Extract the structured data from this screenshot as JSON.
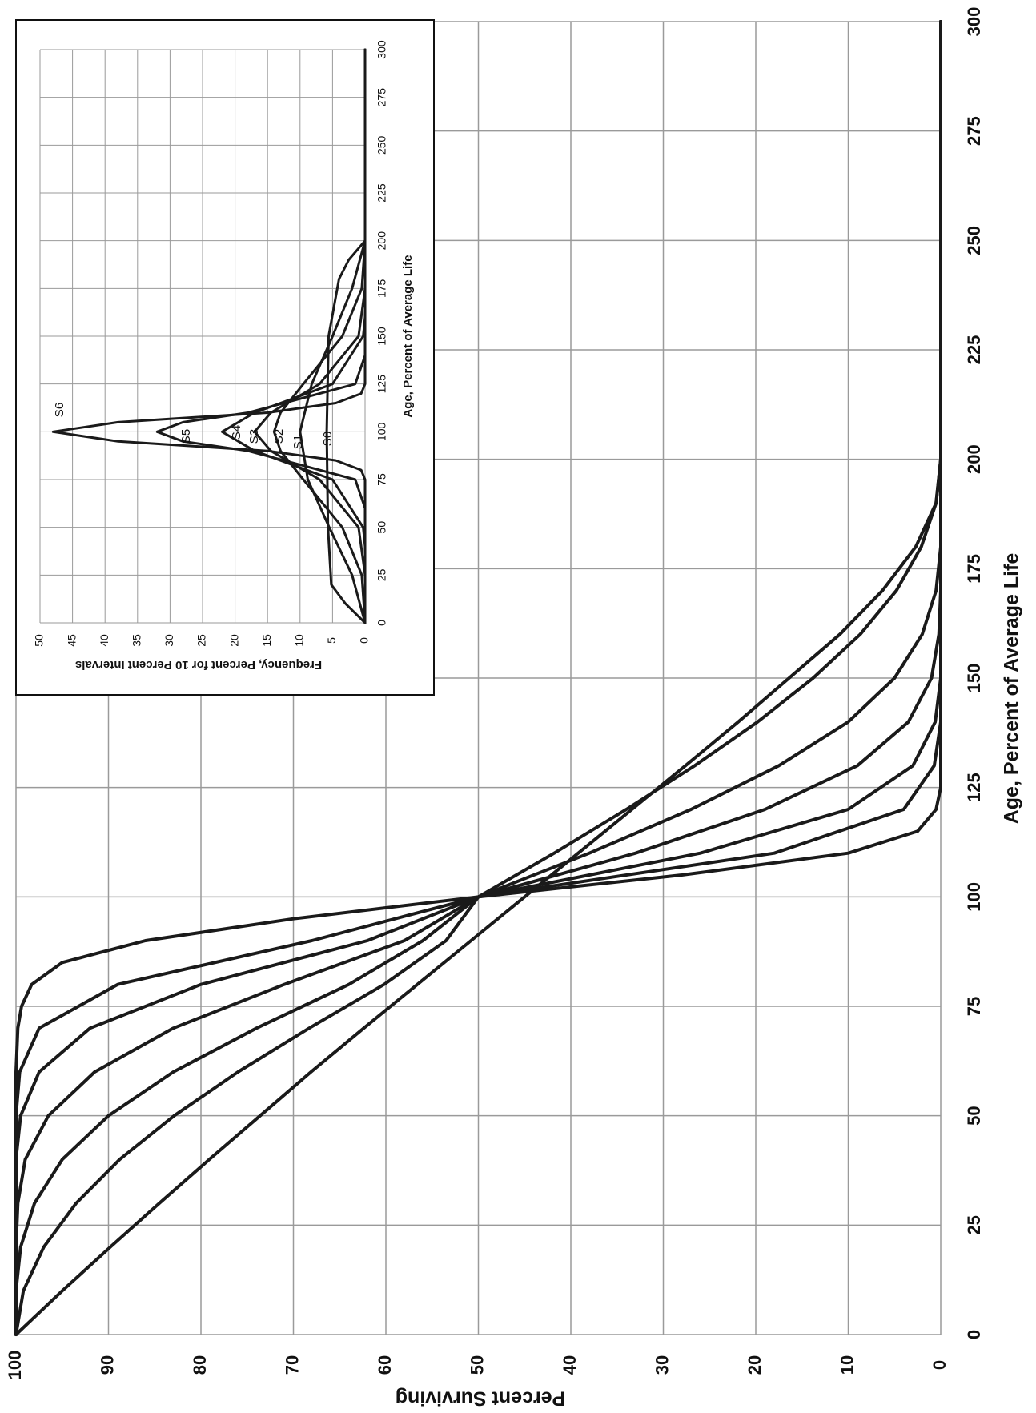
{
  "chart_data": [
    {
      "type": "line",
      "title": "",
      "xlabel": "Age, Percent of Average Life",
      "ylabel": "Percent Surviving",
      "xlim": [
        0,
        300
      ],
      "ylim": [
        0,
        100
      ],
      "x_ticks": [
        "0",
        "25",
        "50",
        "75",
        "100",
        "125",
        "150",
        "175",
        "200",
        "225",
        "250",
        "275",
        "300"
      ],
      "y_ticks": [
        "0",
        "10",
        "20",
        "30",
        "40",
        "50",
        "60",
        "70",
        "80",
        "90",
        "100"
      ],
      "grid": true,
      "orientation": "rotated 90° clockwise",
      "series": [
        {
          "name": "S0",
          "x": [
            0,
            10,
            20,
            30,
            40,
            50,
            60,
            70,
            80,
            90,
            100,
            110,
            120,
            130,
            140,
            150,
            160,
            170,
            180,
            190,
            200,
            300
          ],
          "y": [
            100,
            95,
            89.8,
            84.5,
            79.1,
            73.6,
            68.1,
            62.4,
            56.6,
            50.8,
            45,
            39.2,
            33.4,
            27.6,
            21.9,
            16.4,
            10.9,
            6.3,
            2.7,
            0.5,
            0,
            0
          ]
        },
        {
          "name": "S1",
          "x": [
            0,
            10,
            20,
            30,
            40,
            50,
            60,
            70,
            80,
            90,
            100,
            110,
            120,
            130,
            140,
            150,
            160,
            170,
            180,
            190,
            200,
            300
          ],
          "y": [
            100,
            99.2,
            97,
            93.5,
            88.8,
            82.9,
            76,
            68.3,
            60.2,
            53.5,
            50,
            41.8,
            34,
            26.6,
            19.8,
            13.8,
            8.7,
            4.8,
            2.1,
            0.5,
            0,
            0
          ]
        },
        {
          "name": "S2",
          "x": [
            0,
            10,
            20,
            30,
            40,
            50,
            60,
            70,
            80,
            90,
            100,
            110,
            120,
            130,
            140,
            150,
            160,
            170,
            180,
            200,
            300
          ],
          "y": [
            100,
            100,
            99.5,
            98,
            95,
            90,
            83,
            74,
            64,
            56,
            50,
            38,
            27,
            17.5,
            10,
            5,
            2,
            0.5,
            0,
            0,
            0
          ]
        },
        {
          "name": "S3",
          "x": [
            0,
            20,
            30,
            40,
            50,
            60,
            70,
            80,
            90,
            100,
            110,
            120,
            130,
            140,
            150,
            160,
            170,
            200,
            300
          ],
          "y": [
            100,
            100,
            99.8,
            99,
            96.5,
            91.5,
            83,
            71,
            58,
            50,
            33,
            19,
            9,
            3.5,
            1,
            0.2,
            0,
            0,
            0
          ]
        },
        {
          "name": "S4",
          "x": [
            0,
            40,
            50,
            60,
            70,
            80,
            90,
            100,
            110,
            120,
            130,
            140,
            150,
            200,
            300
          ],
          "y": [
            100,
            100,
            99.5,
            97.5,
            92,
            80,
            62,
            50,
            26,
            10,
            3,
            0.6,
            0,
            0,
            0
          ]
        },
        {
          "name": "S5",
          "x": [
            0,
            50,
            60,
            70,
            80,
            90,
            100,
            110,
            120,
            130,
            140,
            200,
            300
          ],
          "y": [
            100,
            100,
            99.6,
            97.5,
            89,
            68,
            50,
            18,
            4,
            0.7,
            0,
            0,
            0
          ]
        },
        {
          "name": "S6",
          "x": [
            0,
            60,
            70,
            75,
            80,
            85,
            90,
            95,
            100,
            105,
            110,
            115,
            120,
            125,
            200,
            300
          ],
          "y": [
            100,
            100,
            99.8,
            99.4,
            98.3,
            95,
            86,
            70,
            50,
            28,
            10,
            2.5,
            0.5,
            0,
            0,
            0
          ]
        }
      ],
      "annotations": [
        "S0",
        "S1",
        "S2",
        "S3",
        "S4",
        "S5",
        "S6"
      ]
    },
    {
      "type": "line",
      "title": "",
      "xlabel": "Age, Percent of Average Life",
      "ylabel": "Frequency, Percent for 10 Percent Intervals",
      "xlim": [
        0,
        300
      ],
      "ylim": [
        0,
        50
      ],
      "x_ticks": [
        "0",
        "25",
        "50",
        "75",
        "100",
        "125",
        "150",
        "175",
        "200",
        "225",
        "250",
        "275",
        "300"
      ],
      "y_ticks": [
        "0",
        "5",
        "10",
        "15",
        "20",
        "25",
        "30",
        "35",
        "40",
        "45",
        "50"
      ],
      "grid": true,
      "orientation": "inset, rotated 90° clockwise",
      "series": [
        {
          "name": "S0",
          "x": [
            0,
            10,
            20,
            50,
            100,
            150,
            180,
            190,
            200,
            300
          ],
          "y": [
            0,
            3,
            5.2,
            5.7,
            5.9,
            5.6,
            4,
            2.5,
            0,
            0
          ]
        },
        {
          "name": "S1",
          "x": [
            0,
            25,
            50,
            75,
            100,
            125,
            150,
            175,
            200,
            300
          ],
          "y": [
            0,
            2,
            5.5,
            8.8,
            10,
            8.2,
            5,
            2,
            0,
            0
          ]
        },
        {
          "name": "S2",
          "x": [
            0,
            25,
            50,
            75,
            90,
            100,
            110,
            125,
            150,
            175,
            200,
            300
          ],
          "y": [
            0,
            0.5,
            3.5,
            9.5,
            13,
            14,
            13,
            9.5,
            3.5,
            0.5,
            0,
            0
          ]
        },
        {
          "name": "S3",
          "x": [
            0,
            25,
            50,
            75,
            90,
            100,
            110,
            125,
            150,
            175,
            300
          ],
          "y": [
            0,
            0,
            1,
            7,
            14.5,
            17,
            14.5,
            7,
            1,
            0,
            0
          ]
        },
        {
          "name": "S4",
          "x": [
            0,
            40,
            50,
            75,
            90,
            100,
            110,
            125,
            150,
            160,
            300
          ],
          "y": [
            0,
            0,
            0.3,
            5,
            17,
            22,
            17,
            5,
            0.3,
            0,
            0
          ]
        },
        {
          "name": "S5",
          "x": [
            0,
            60,
            75,
            90,
            95,
            100,
            105,
            110,
            125,
            140,
            300
          ],
          "y": [
            0,
            0,
            1.5,
            18,
            28,
            32,
            28,
            18,
            1.5,
            0,
            0
          ]
        },
        {
          "name": "S6",
          "x": [
            0,
            75,
            80,
            85,
            90,
            95,
            100,
            105,
            110,
            115,
            120,
            125,
            300
          ],
          "y": [
            0,
            0,
            0.6,
            4.5,
            15,
            38,
            48,
            38,
            15,
            4.5,
            0.6,
            0,
            0
          ]
        }
      ],
      "annotations": [
        "S6",
        "S5",
        "S4",
        "S3",
        "S2",
        "S1",
        "S0"
      ]
    }
  ]
}
